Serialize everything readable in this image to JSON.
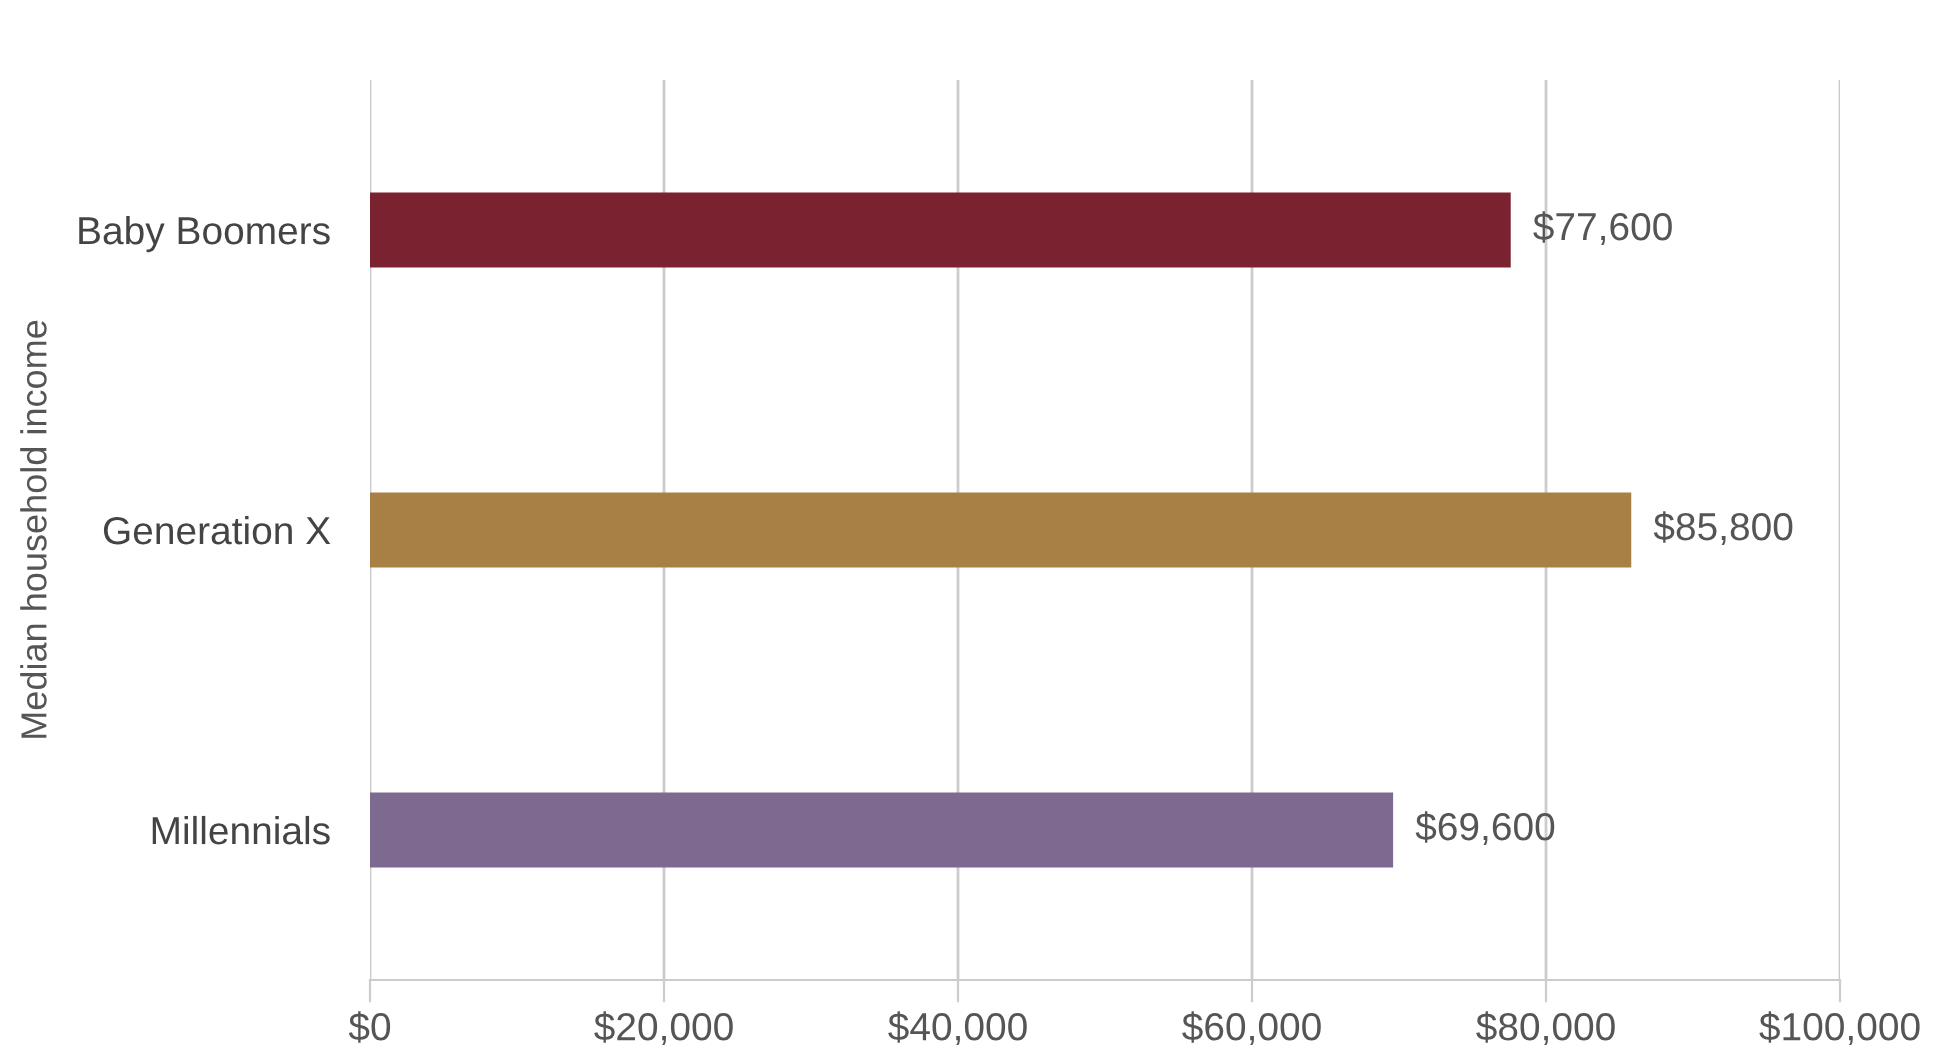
{
  "chart_data": {
    "type": "bar",
    "orientation": "horizontal",
    "ylabel": "Median household income",
    "categories": [
      "Baby Boomers",
      "Generation X",
      "Millennials"
    ],
    "values": [
      77600,
      85800,
      69600
    ],
    "colors": [
      "#7b2230",
      "#a88046",
      "#7e6a91"
    ],
    "value_labels": [
      "$77,600",
      "$85,800",
      "$69,600"
    ],
    "xlim": [
      0,
      100000
    ],
    "xticks": [
      {
        "value": 0,
        "label": "$0"
      },
      {
        "value": 20000,
        "label": "$20,000"
      },
      {
        "value": 40000,
        "label": "$40,000"
      },
      {
        "value": 60000,
        "label": "$60,000"
      },
      {
        "value": 80000,
        "label": "$80,000"
      },
      {
        "value": 100000,
        "label": "$100,000"
      }
    ],
    "grid": "x",
    "legend": false
  }
}
